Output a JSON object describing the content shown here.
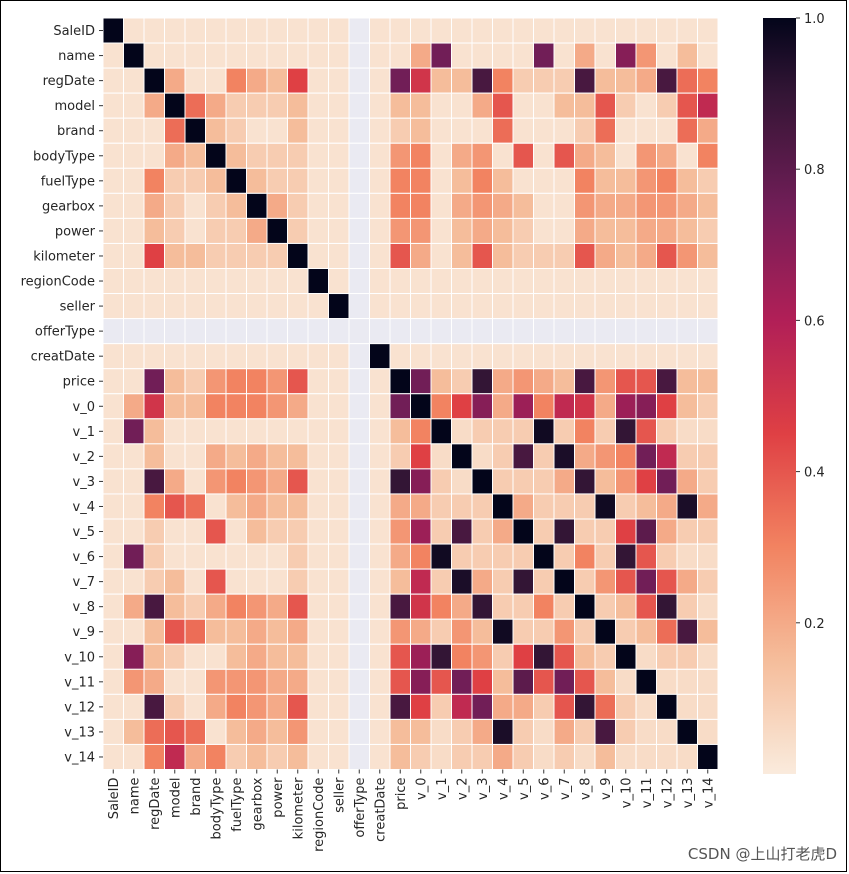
{
  "chart_data": {
    "type": "heatmap",
    "title": "",
    "xlabel": "",
    "ylabel": "",
    "labels": [
      "SaleID",
      "name",
      "regDate",
      "model",
      "brand",
      "bodyType",
      "fuelType",
      "gearbox",
      "power",
      "kilometer",
      "regionCode",
      "seller",
      "offerType",
      "creatDate",
      "price",
      "v_0",
      "v_1",
      "v_2",
      "v_3",
      "v_4",
      "v_5",
      "v_6",
      "v_7",
      "v_8",
      "v_9",
      "v_10",
      "v_11",
      "v_12",
      "v_13",
      "v_14"
    ],
    "nan_label": "offerType",
    "colorbar": {
      "min": 0.0,
      "max": 1.0,
      "ticks": [
        0.2,
        0.4,
        0.6,
        0.8,
        1.0
      ],
      "tick_labels": [
        "0.2",
        "0.4",
        "0.6",
        "0.8",
        "1.0"
      ],
      "colormap": "rocket_r",
      "nan_color": "#EAEAF2"
    },
    "correlations": {
      "name": [
        [
          "v_1",
          0.75
        ],
        [
          "v_6",
          0.75
        ],
        [
          "v_10",
          0.7
        ],
        [
          "v_11",
          0.25
        ],
        [
          "v_8",
          0.2
        ],
        [
          "v_0",
          0.2
        ],
        [
          "v_13",
          0.15
        ]
      ],
      "regDate": [
        [
          "model",
          0.2
        ],
        [
          "fuelType",
          0.3
        ],
        [
          "gearbox",
          0.2
        ],
        [
          "power",
          0.15
        ],
        [
          "kilometer",
          0.45
        ],
        [
          "price",
          0.75
        ],
        [
          "v_0",
          0.5
        ],
        [
          "v_1",
          0.15
        ],
        [
          "v_2",
          0.15
        ],
        [
          "v_3",
          0.85
        ],
        [
          "v_4",
          0.3
        ],
        [
          "v_5",
          0.1
        ],
        [
          "v_6",
          0.1
        ],
        [
          "v_7",
          0.1
        ],
        [
          "v_8",
          0.85
        ],
        [
          "v_9",
          0.15
        ],
        [
          "v_10",
          0.15
        ],
        [
          "v_11",
          0.2
        ],
        [
          "v_12",
          0.85
        ],
        [
          "v_13",
          0.35
        ],
        [
          "v_14",
          0.3
        ]
      ],
      "model": [
        [
          "brand",
          0.35
        ],
        [
          "bodyType",
          0.2
        ],
        [
          "fuelType",
          0.1
        ],
        [
          "gearbox",
          0.1
        ],
        [
          "power",
          0.1
        ],
        [
          "kilometer",
          0.15
        ],
        [
          "price",
          0.15
        ],
        [
          "v_0",
          0.15
        ],
        [
          "v_3",
          0.2
        ],
        [
          "v_4",
          0.4
        ],
        [
          "v_7",
          0.15
        ],
        [
          "v_8",
          0.15
        ],
        [
          "v_9",
          0.4
        ],
        [
          "v_10",
          0.1
        ],
        [
          "v_12",
          0.1
        ],
        [
          "v_13",
          0.4
        ],
        [
          "v_14",
          0.55
        ]
      ],
      "brand": [
        [
          "bodyType",
          0.15
        ],
        [
          "fuelType",
          0.1
        ],
        [
          "kilometer",
          0.15
        ],
        [
          "price",
          0.1
        ],
        [
          "v_0",
          0.15
        ],
        [
          "v_4",
          0.35
        ],
        [
          "v_8",
          0.1
        ],
        [
          "v_9",
          0.35
        ],
        [
          "v_13",
          0.35
        ],
        [
          "v_14",
          0.2
        ]
      ],
      "bodyType": [
        [
          "fuelType",
          0.15
        ],
        [
          "gearbox",
          0.1
        ],
        [
          "power",
          0.1
        ],
        [
          "kilometer",
          0.1
        ],
        [
          "price",
          0.25
        ],
        [
          "v_0",
          0.3
        ],
        [
          "v_2",
          0.2
        ],
        [
          "v_3",
          0.25
        ],
        [
          "v_5",
          0.4
        ],
        [
          "v_7",
          0.4
        ],
        [
          "v_8",
          0.2
        ],
        [
          "v_9",
          0.15
        ],
        [
          "v_11",
          0.25
        ],
        [
          "v_12",
          0.2
        ],
        [
          "v_14",
          0.3
        ]
      ],
      "fuelType": [
        [
          "gearbox",
          0.15
        ],
        [
          "power",
          0.1
        ],
        [
          "kilometer",
          0.1
        ],
        [
          "price",
          0.3
        ],
        [
          "v_0",
          0.3
        ],
        [
          "v_2",
          0.15
        ],
        [
          "v_3",
          0.3
        ],
        [
          "v_4",
          0.15
        ],
        [
          "v_8",
          0.3
        ],
        [
          "v_9",
          0.15
        ],
        [
          "v_10",
          0.15
        ],
        [
          "v_11",
          0.25
        ],
        [
          "v_12",
          0.3
        ],
        [
          "v_13",
          0.15
        ],
        [
          "v_14",
          0.1
        ]
      ],
      "gearbox": [
        [
          "power",
          0.2
        ],
        [
          "kilometer",
          0.1
        ],
        [
          "price",
          0.3
        ],
        [
          "v_0",
          0.3
        ],
        [
          "v_2",
          0.2
        ],
        [
          "v_3",
          0.25
        ],
        [
          "v_4",
          0.2
        ],
        [
          "v_5",
          0.15
        ],
        [
          "v_8",
          0.25
        ],
        [
          "v_9",
          0.2
        ],
        [
          "v_10",
          0.2
        ],
        [
          "v_11",
          0.25
        ],
        [
          "v_12",
          0.25
        ],
        [
          "v_13",
          0.2
        ],
        [
          "v_14",
          0.15
        ]
      ],
      "power": [
        [
          "kilometer",
          0.1
        ],
        [
          "price",
          0.25
        ],
        [
          "v_0",
          0.25
        ],
        [
          "v_2",
          0.15
        ],
        [
          "v_3",
          0.2
        ],
        [
          "v_4",
          0.15
        ],
        [
          "v_5",
          0.1
        ],
        [
          "v_8",
          0.2
        ],
        [
          "v_9",
          0.15
        ],
        [
          "v_10",
          0.15
        ],
        [
          "v_11",
          0.2
        ],
        [
          "v_12",
          0.2
        ],
        [
          "v_13",
          0.15
        ],
        [
          "v_14",
          0.1
        ]
      ],
      "kilometer": [
        [
          "price",
          0.4
        ],
        [
          "v_0",
          0.2
        ],
        [
          "v_2",
          0.15
        ],
        [
          "v_3",
          0.4
        ],
        [
          "v_4",
          0.15
        ],
        [
          "v_5",
          0.1
        ],
        [
          "v_6",
          0.1
        ],
        [
          "v_7",
          0.1
        ],
        [
          "v_8",
          0.4
        ],
        [
          "v_9",
          0.2
        ],
        [
          "v_10",
          0.15
        ],
        [
          "v_11",
          0.2
        ],
        [
          "v_12",
          0.4
        ],
        [
          "v_13",
          0.25
        ],
        [
          "v_14",
          0.15
        ]
      ],
      "price": [
        [
          "v_0",
          0.75
        ],
        [
          "v_1",
          0.15
        ],
        [
          "v_2",
          0.1
        ],
        [
          "v_3",
          0.9
        ],
        [
          "v_4",
          0.2
        ],
        [
          "v_5",
          0.25
        ],
        [
          "v_6",
          0.2
        ],
        [
          "v_7",
          0.15
        ],
        [
          "v_8",
          0.85
        ],
        [
          "v_9",
          0.25
        ],
        [
          "v_10",
          0.4
        ],
        [
          "v_11",
          0.4
        ],
        [
          "v_12",
          0.85
        ],
        [
          "v_13",
          0.15
        ],
        [
          "v_14",
          0.15
        ]
      ],
      "v_0": [
        [
          "v_1",
          0.3
        ],
        [
          "v_2",
          0.45
        ],
        [
          "v_3",
          0.7
        ],
        [
          "v_4",
          0.2
        ],
        [
          "v_5",
          0.65
        ],
        [
          "v_6",
          0.3
        ],
        [
          "v_7",
          0.55
        ],
        [
          "v_8",
          0.5
        ],
        [
          "v_9",
          0.2
        ],
        [
          "v_10",
          0.65
        ],
        [
          "v_11",
          0.7
        ],
        [
          "v_12",
          0.45
        ],
        [
          "v_13",
          0.15
        ],
        [
          "v_14",
          0.1
        ]
      ],
      "v_1": [
        [
          "v_2",
          0.05
        ],
        [
          "v_3",
          0.1
        ],
        [
          "v_4",
          0.1
        ],
        [
          "v_5",
          0.1
        ],
        [
          "v_6",
          0.97
        ],
        [
          "v_7",
          0.1
        ],
        [
          "v_8",
          0.3
        ],
        [
          "v_9",
          0.1
        ],
        [
          "v_10",
          0.9
        ],
        [
          "v_11",
          0.4
        ],
        [
          "v_12",
          0.1
        ],
        [
          "v_13",
          0.05
        ],
        [
          "v_14",
          0.05
        ]
      ],
      "v_2": [
        [
          "v_3",
          0.05
        ],
        [
          "v_4",
          0.1
        ],
        [
          "v_5",
          0.85
        ],
        [
          "v_6",
          0.1
        ],
        [
          "v_7",
          0.95
        ],
        [
          "v_8",
          0.2
        ],
        [
          "v_9",
          0.25
        ],
        [
          "v_10",
          0.3
        ],
        [
          "v_11",
          0.75
        ],
        [
          "v_12",
          0.55
        ],
        [
          "v_13",
          0.1
        ],
        [
          "v_14",
          0.1
        ]
      ],
      "v_3": [
        [
          "v_4",
          0.1
        ],
        [
          "v_5",
          0.1
        ],
        [
          "v_6",
          0.1
        ],
        [
          "v_7",
          0.2
        ],
        [
          "v_8",
          0.9
        ],
        [
          "v_9",
          0.15
        ],
        [
          "v_10",
          0.25
        ],
        [
          "v_11",
          0.45
        ],
        [
          "v_12",
          0.75
        ],
        [
          "v_13",
          0.2
        ],
        [
          "v_14",
          0.1
        ]
      ],
      "v_4": [
        [
          "v_5",
          0.2
        ],
        [
          "v_6",
          0.1
        ],
        [
          "v_7",
          0.1
        ],
        [
          "v_8",
          0.1
        ],
        [
          "v_9",
          0.97
        ],
        [
          "v_10",
          0.1
        ],
        [
          "v_11",
          0.15
        ],
        [
          "v_12",
          0.2
        ],
        [
          "v_13",
          0.95
        ],
        [
          "v_14",
          0.2
        ]
      ],
      "v_5": [
        [
          "v_6",
          0.1
        ],
        [
          "v_7",
          0.9
        ],
        [
          "v_8",
          0.1
        ],
        [
          "v_9",
          0.1
        ],
        [
          "v_10",
          0.45
        ],
        [
          "v_11",
          0.8
        ],
        [
          "v_12",
          0.2
        ],
        [
          "v_13",
          0.1
        ],
        [
          "v_14",
          0.1
        ]
      ],
      "v_6": [
        [
          "v_7",
          0.1
        ],
        [
          "v_8",
          0.3
        ],
        [
          "v_9",
          0.1
        ],
        [
          "v_10",
          0.9
        ],
        [
          "v_11",
          0.4
        ],
        [
          "v_12",
          0.1
        ],
        [
          "v_13",
          0.05
        ],
        [
          "v_14",
          0.05
        ]
      ],
      "v_7": [
        [
          "v_8",
          0.1
        ],
        [
          "v_9",
          0.25
        ],
        [
          "v_10",
          0.4
        ],
        [
          "v_11",
          0.75
        ],
        [
          "v_12",
          0.4
        ],
        [
          "v_13",
          0.2
        ],
        [
          "v_14",
          0.1
        ]
      ],
      "v_8": [
        [
          "v_9",
          0.1
        ],
        [
          "v_10",
          0.15
        ],
        [
          "v_11",
          0.4
        ],
        [
          "v_12",
          0.9
        ],
        [
          "v_13",
          0.1
        ],
        [
          "v_14",
          0.05
        ]
      ],
      "v_9": [
        [
          "v_10",
          0.1
        ],
        [
          "v_11",
          0.15
        ],
        [
          "v_12",
          0.35
        ],
        [
          "v_13",
          0.85
        ],
        [
          "v_14",
          0.15
        ]
      ],
      "v_10": [
        [
          "v_11",
          0.05
        ],
        [
          "v_12",
          0.1
        ],
        [
          "v_13",
          0.1
        ],
        [
          "v_14",
          0.05
        ]
      ],
      "v_11": [
        [
          "v_12",
          0.05
        ],
        [
          "v_13",
          0.05
        ],
        [
          "v_14",
          0.05
        ]
      ],
      "v_12": [
        [
          "v_13",
          0.05
        ],
        [
          "v_14",
          0.05
        ]
      ],
      "v_13": [
        [
          "v_14",
          0.05
        ]
      ]
    }
  },
  "watermark": "CSDN @上山打老虎D"
}
